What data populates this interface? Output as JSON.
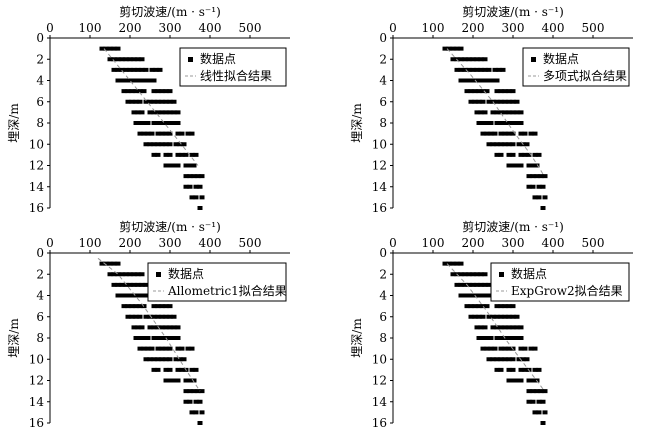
{
  "chart_data": [
    {
      "type": "scatter",
      "title": "剪切波速/(m · s⁻¹)",
      "xlabel": "剪切波速/(m · s⁻¹)",
      "ylabel": "埋深/m",
      "xlim": [
        0,
        600
      ],
      "ylim": [
        16,
        0
      ],
      "x_ticks": [
        "0",
        "100",
        "200",
        "300",
        "400",
        "500"
      ],
      "y_ticks": [
        "0",
        "2",
        "4",
        "6",
        "8",
        "10",
        "12",
        "14",
        "16"
      ],
      "legend": {
        "position": "top-right",
        "entries": [
          "数据点",
          "线性拟合结果"
        ]
      },
      "fit": {
        "label": "线性拟合结果",
        "points": [
          [
            135,
            1.0
          ],
          [
            200,
            4.0
          ],
          [
            260,
            6.8
          ],
          [
            320,
            9.6
          ],
          [
            370,
            12.0
          ]
        ]
      }
    },
    {
      "type": "scatter",
      "title": "剪切波速/(m · s⁻¹)",
      "xlabel": "剪切波速/(m · s⁻¹)",
      "ylabel": "埋深/m",
      "xlim": [
        0,
        600
      ],
      "ylim": [
        16,
        0
      ],
      "x_ticks": [
        "0",
        "100",
        "200",
        "300",
        "400",
        "500"
      ],
      "y_ticks": [
        "0",
        "2",
        "4",
        "6",
        "8",
        "10",
        "12",
        "14",
        "16"
      ],
      "legend": {
        "position": "top-right",
        "entries": [
          "数据点",
          "多项式拟合结果"
        ]
      },
      "fit": {
        "label": "多项式拟合结果",
        "points": [
          [
            135,
            1.0
          ],
          [
            195,
            3.5
          ],
          [
            250,
            6.0
          ],
          [
            305,
            9.0
          ],
          [
            345,
            11.0
          ],
          [
            375,
            12.8
          ]
        ]
      }
    },
    {
      "type": "scatter",
      "title": "剪切波速/(m · s⁻¹)",
      "xlabel": "剪切波速/(m · s⁻¹)",
      "ylabel": "埋深/m",
      "xlim": [
        0,
        600
      ],
      "ylim": [
        16,
        0
      ],
      "x_ticks": [
        "0",
        "100",
        "200",
        "300",
        "400",
        "500"
      ],
      "y_ticks": [
        "0",
        "2",
        "4",
        "6",
        "8",
        "10",
        "12",
        "14",
        "16"
      ],
      "legend": {
        "position": "top-right",
        "entries": [
          "数据点",
          "Allometric1拟合结果"
        ]
      },
      "fit": {
        "label": "Allometric1拟合结果",
        "points": [
          [
            120,
            0.5
          ],
          [
            170,
            2.0
          ],
          [
            230,
            4.8
          ],
          [
            290,
            8.0
          ],
          [
            340,
            11.0
          ],
          [
            375,
            13.0
          ]
        ]
      }
    },
    {
      "type": "scatter",
      "title": "剪切波速/(m · s⁻¹)",
      "xlabel": "剪切波速/(m · s⁻¹)",
      "ylabel": "埋深/m",
      "xlim": [
        0,
        600
      ],
      "ylim": [
        16,
        0
      ],
      "x_ticks": [
        "0",
        "100",
        "200",
        "300",
        "400",
        "500"
      ],
      "y_ticks": [
        "0",
        "2",
        "4",
        "6",
        "8",
        "10",
        "12",
        "14",
        "16"
      ],
      "legend": {
        "position": "top-right",
        "entries": [
          "数据点",
          "ExpGrow2拟合结果"
        ]
      },
      "fit": {
        "label": "ExpGrow2拟合结果",
        "points": [
          [
            135,
            1.0
          ],
          [
            185,
            3.0
          ],
          [
            235,
            5.5
          ],
          [
            285,
            8.3
          ],
          [
            335,
            10.8
          ],
          [
            375,
            12.8
          ]
        ]
      }
    }
  ],
  "data_points": [
    [
      130,
      1.0
    ],
    [
      140,
      1.0
    ],
    [
      150,
      1.0
    ],
    [
      160,
      1.0
    ],
    [
      170,
      1.0
    ],
    [
      150,
      2.0
    ],
    [
      160,
      2.0
    ],
    [
      170,
      2.0
    ],
    [
      180,
      2.0
    ],
    [
      190,
      2.0
    ],
    [
      200,
      2.0
    ],
    [
      210,
      2.0
    ],
    [
      220,
      2.0
    ],
    [
      230,
      2.0
    ],
    [
      160,
      3.0
    ],
    [
      170,
      3.0
    ],
    [
      180,
      3.0
    ],
    [
      190,
      3.0
    ],
    [
      200,
      3.0
    ],
    [
      210,
      3.0
    ],
    [
      220,
      3.0
    ],
    [
      230,
      3.0
    ],
    [
      240,
      3.0
    ],
    [
      255,
      3.0
    ],
    [
      265,
      3.0
    ],
    [
      275,
      3.0
    ],
    [
      170,
      4.0
    ],
    [
      180,
      4.0
    ],
    [
      190,
      4.0
    ],
    [
      200,
      4.0
    ],
    [
      210,
      4.0
    ],
    [
      220,
      4.0
    ],
    [
      230,
      4.0
    ],
    [
      240,
      4.0
    ],
    [
      250,
      4.0
    ],
    [
      260,
      4.0
    ],
    [
      185,
      5.0
    ],
    [
      195,
      5.0
    ],
    [
      205,
      5.0
    ],
    [
      215,
      5.0
    ],
    [
      225,
      5.0
    ],
    [
      235,
      5.0
    ],
    [
      260,
      5.0
    ],
    [
      270,
      5.0
    ],
    [
      280,
      5.0
    ],
    [
      290,
      5.0
    ],
    [
      300,
      5.0
    ],
    [
      195,
      6.0
    ],
    [
      205,
      6.0
    ],
    [
      215,
      6.0
    ],
    [
      225,
      6.0
    ],
    [
      240,
      6.0
    ],
    [
      250,
      6.0
    ],
    [
      260,
      6.0
    ],
    [
      270,
      6.0
    ],
    [
      280,
      6.0
    ],
    [
      290,
      6.0
    ],
    [
      300,
      6.0
    ],
    [
      310,
      6.0
    ],
    [
      210,
      7.0
    ],
    [
      220,
      7.0
    ],
    [
      230,
      7.0
    ],
    [
      250,
      7.0
    ],
    [
      260,
      7.0
    ],
    [
      270,
      7.0
    ],
    [
      280,
      7.0
    ],
    [
      290,
      7.0
    ],
    [
      300,
      7.0
    ],
    [
      310,
      7.0
    ],
    [
      320,
      7.0
    ],
    [
      215,
      8.0
    ],
    [
      225,
      8.0
    ],
    [
      235,
      8.0
    ],
    [
      245,
      8.0
    ],
    [
      260,
      8.0
    ],
    [
      270,
      8.0
    ],
    [
      280,
      8.0
    ],
    [
      290,
      8.0
    ],
    [
      300,
      8.0
    ],
    [
      310,
      8.0
    ],
    [
      320,
      8.0
    ],
    [
      225,
      9.0
    ],
    [
      235,
      9.0
    ],
    [
      245,
      9.0
    ],
    [
      255,
      9.0
    ],
    [
      270,
      9.0
    ],
    [
      280,
      9.0
    ],
    [
      290,
      9.0
    ],
    [
      300,
      9.0
    ],
    [
      320,
      9.0
    ],
    [
      330,
      9.0
    ],
    [
      345,
      9.0
    ],
    [
      355,
      9.0
    ],
    [
      240,
      10.0
    ],
    [
      250,
      10.0
    ],
    [
      260,
      10.0
    ],
    [
      270,
      10.0
    ],
    [
      280,
      10.0
    ],
    [
      290,
      10.0
    ],
    [
      300,
      10.0
    ],
    [
      315,
      10.0
    ],
    [
      325,
      10.0
    ],
    [
      335,
      10.0
    ],
    [
      260,
      11.0
    ],
    [
      270,
      11.0
    ],
    [
      290,
      11.0
    ],
    [
      300,
      11.0
    ],
    [
      320,
      11.0
    ],
    [
      330,
      11.0
    ],
    [
      340,
      11.0
    ],
    [
      355,
      11.0
    ],
    [
      365,
      11.0
    ],
    [
      290,
      12.0
    ],
    [
      300,
      12.0
    ],
    [
      310,
      12.0
    ],
    [
      320,
      12.0
    ],
    [
      340,
      12.0
    ],
    [
      350,
      12.0
    ],
    [
      360,
      12.0
    ],
    [
      340,
      13.0
    ],
    [
      350,
      13.0
    ],
    [
      360,
      13.0
    ],
    [
      370,
      13.0
    ],
    [
      380,
      13.0
    ],
    [
      340,
      14.0
    ],
    [
      350,
      14.0
    ],
    [
      365,
      14.0
    ],
    [
      375,
      14.0
    ],
    [
      355,
      15.0
    ],
    [
      365,
      15.0
    ],
    [
      380,
      15.0
    ],
    [
      375,
      16.0
    ]
  ],
  "colors": {
    "marker": "#000000",
    "fit_line": "#999999",
    "axis": "#000000"
  }
}
